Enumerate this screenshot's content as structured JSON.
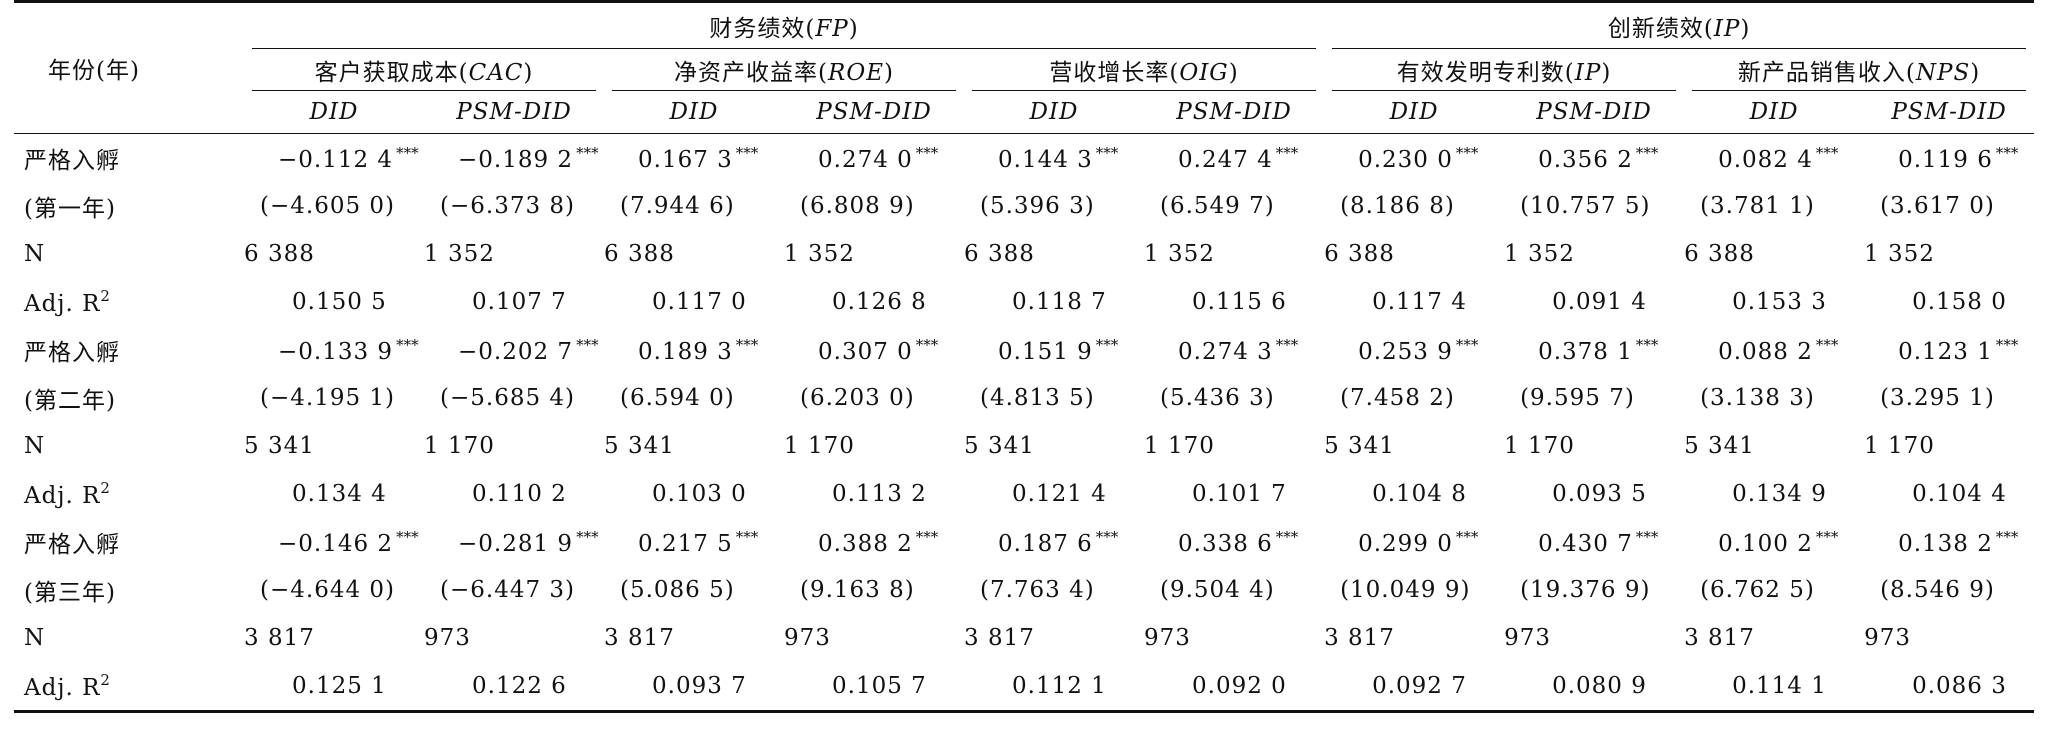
{
  "header": {
    "year_label": "年份(年)",
    "groups": [
      {
        "label": "财务绩效",
        "abbr": "FP"
      },
      {
        "label": "创新绩效",
        "abbr": "IP"
      }
    ],
    "metrics": [
      {
        "label": "客户获取成本",
        "abbr": "CAC"
      },
      {
        "label": "净资产收益率",
        "abbr": "ROE"
      },
      {
        "label": "营收增长率",
        "abbr": "OIG"
      },
      {
        "label": "有效发明专利数",
        "abbr": "IP"
      },
      {
        "label": "新产品销售收入",
        "abbr": "NPS"
      }
    ],
    "methods": [
      "DID",
      "PSM-DID",
      "DID",
      "PSM-DID",
      "DID",
      "PSM-DID",
      "DID",
      "PSM-DID",
      "DID",
      "PSM-DID"
    ]
  },
  "labels": {
    "n": "N",
    "adj_r2": "Adj. R",
    "adj_r2_sup": "2"
  },
  "blocks": [
    {
      "label": "严格入孵",
      "sublabel": "(第一年)",
      "coef": [
        "−0.112 4",
        "−0.189 2",
        "0.167 3",
        "0.274 0",
        "0.144 3",
        "0.247 4",
        "0.230 0",
        "0.356 2",
        "0.082 4",
        "0.119 6"
      ],
      "stars": [
        "***",
        "***",
        "***",
        "***",
        "***",
        "***",
        "***",
        "***",
        "***",
        "***"
      ],
      "tstat": [
        "(−4.605 0)",
        "(−6.373 8)",
        "(7.944 6)",
        "(6.808 9)",
        "(5.396 3)",
        "(6.549 7)",
        "(8.186 8)",
        "(10.757 5)",
        "(3.781 1)",
        "(3.617 0)"
      ],
      "n": [
        "6 388",
        "1 352",
        "6 388",
        "1 352",
        "6 388",
        "1 352",
        "6 388",
        "1 352",
        "6 388",
        "1 352"
      ],
      "adj_r2": [
        "0.150 5",
        "0.107 7",
        "0.117 0",
        "0.126 8",
        "0.118 7",
        "0.115 6",
        "0.117 4",
        "0.091 4",
        "0.153 3",
        "0.158 0"
      ]
    },
    {
      "label": "严格入孵",
      "sublabel": "(第二年)",
      "coef": [
        "−0.133 9",
        "−0.202 7",
        "0.189 3",
        "0.307 0",
        "0.151 9",
        "0.274 3",
        "0.253 9",
        "0.378 1",
        "0.088 2",
        "0.123 1"
      ],
      "stars": [
        "***",
        "***",
        "***",
        "***",
        "***",
        "***",
        "***",
        "***",
        "***",
        "***"
      ],
      "tstat": [
        "(−4.195 1)",
        "(−5.685 4)",
        "(6.594 0)",
        "(6.203 0)",
        "(4.813 5)",
        "(5.436 3)",
        "(7.458 2)",
        "(9.595 7)",
        "(3.138 3)",
        "(3.295 1)"
      ],
      "n": [
        "5 341",
        "1 170",
        "5 341",
        "1 170",
        "5 341",
        "1 170",
        "5 341",
        "1 170",
        "5 341",
        "1 170"
      ],
      "adj_r2": [
        "0.134 4",
        "0.110 2",
        "0.103 0",
        "0.113 2",
        "0.121 4",
        "0.101 7",
        "0.104 8",
        "0.093 5",
        "0.134 9",
        "0.104 4"
      ]
    },
    {
      "label": "严格入孵",
      "sublabel": "(第三年)",
      "coef": [
        "−0.146 2",
        "−0.281 9",
        "0.217 5",
        "0.388 2",
        "0.187 6",
        "0.338 6",
        "0.299 0",
        "0.430 7",
        "0.100 2",
        "0.138 2"
      ],
      "stars": [
        "***",
        "***",
        "***",
        "***",
        "***",
        "***",
        "***",
        "***",
        "***",
        "***"
      ],
      "tstat": [
        "(−4.644 0)",
        "(−6.447 3)",
        "(5.086 5)",
        "(9.163 8)",
        "(7.763 4)",
        "(9.504 4)",
        "(10.049 9)",
        "(19.376 9)",
        "(6.762 5)",
        "(8.546 9)"
      ],
      "n": [
        "3 817",
        "973",
        "3 817",
        "973",
        "3 817",
        "973",
        "3 817",
        "973",
        "3 817",
        "973"
      ],
      "adj_r2": [
        "0.125 1",
        "0.122 6",
        "0.093 7",
        "0.105 7",
        "0.112 1",
        "0.092 0",
        "0.092 7",
        "0.080 9",
        "0.114 1",
        "0.086 3"
      ]
    }
  ]
}
